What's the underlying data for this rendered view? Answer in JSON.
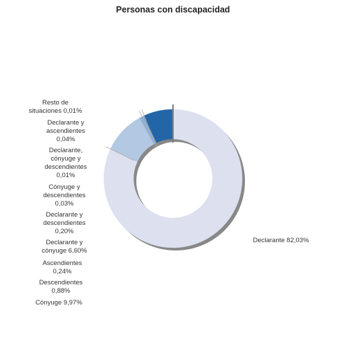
{
  "chart_data": {
    "type": "pie",
    "title": "Personas con discapacidad",
    "slices": [
      {
        "label": "Declarante",
        "value": 82.03,
        "display": "Declarante 82,03%",
        "color": "#dde0ef"
      },
      {
        "label": "Cónyuge",
        "value": 9.97,
        "display": "Cónyuge 9,97%",
        "color": "#b2c8e3"
      },
      {
        "label": "Descendientes",
        "value": 0.88,
        "display": "Descendientes\n0,88%",
        "color": "#8fb0d6"
      },
      {
        "label": "Ascendientes",
        "value": 0.24,
        "display": "Ascendientes\n0,24%",
        "color": "#7ea2cc"
      },
      {
        "label": "Declarante y cónyuge",
        "value": 6.6,
        "display": "Declarante y\ncónyuge 6,60%",
        "color": "#2366a8"
      },
      {
        "label": "Declarante y descendientes",
        "value": 0.2,
        "display": "Declarante y\ndescendientes\n0,20%",
        "color": "#3d6fa8"
      },
      {
        "label": "Cónyuge y descendientes",
        "value": 0.03,
        "display": "Cónyuge y\ndescendientes\n0,03%",
        "color": "#4d7db0"
      },
      {
        "label": "Declarante, cónyuge y descendientes",
        "value": 0.01,
        "display": "Declarante,\ncónyuge y\ndescendientes\n0,01%",
        "color": "#5b88b8"
      },
      {
        "label": "Declarante y ascendientes",
        "value": 0.04,
        "display": "Declarante y\nascendientes\n0,04%",
        "color": "#6a93bf"
      },
      {
        "label": "Resto de situaciones",
        "value": 0.01,
        "display": "Resto de\nsituaciones 0,01%",
        "color": "#7a9ec6"
      }
    ]
  }
}
